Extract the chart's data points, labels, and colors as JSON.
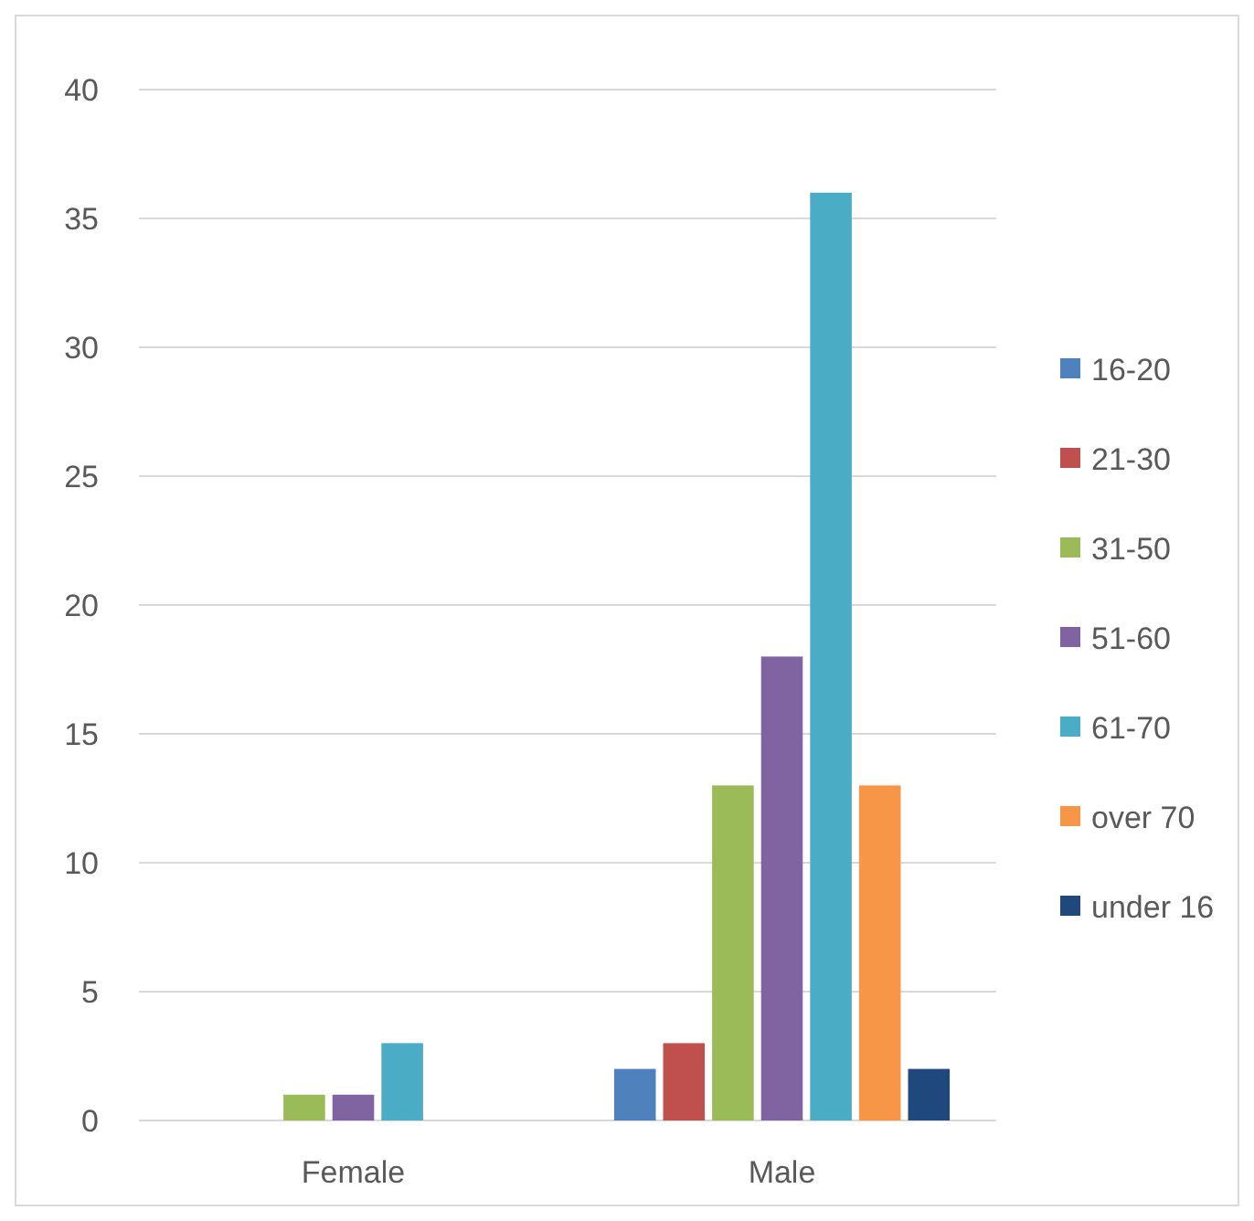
{
  "chart_data": {
    "type": "bar",
    "categories": [
      "Female",
      "Male"
    ],
    "series": [
      {
        "name": "16-20",
        "color": "#4f81bd",
        "values": [
          0,
          2
        ]
      },
      {
        "name": "21-30",
        "color": "#c0504d",
        "values": [
          0,
          3
        ]
      },
      {
        "name": "31-50",
        "color": "#9bbb59",
        "values": [
          1,
          13
        ]
      },
      {
        "name": "51-60",
        "color": "#8064a2",
        "values": [
          1,
          18
        ]
      },
      {
        "name": "61-70",
        "color": "#4bacc6",
        "values": [
          3,
          36
        ]
      },
      {
        "name": "over 70",
        "color": "#f79646",
        "values": [
          0,
          13
        ]
      },
      {
        "name": "under 16",
        "color": "#1f497d",
        "values": [
          0,
          2
        ]
      }
    ],
    "ylim": [
      0,
      40
    ],
    "yticks": [
      0,
      5,
      10,
      15,
      20,
      25,
      30,
      35,
      40
    ],
    "grid": "y",
    "legend": "right"
  }
}
